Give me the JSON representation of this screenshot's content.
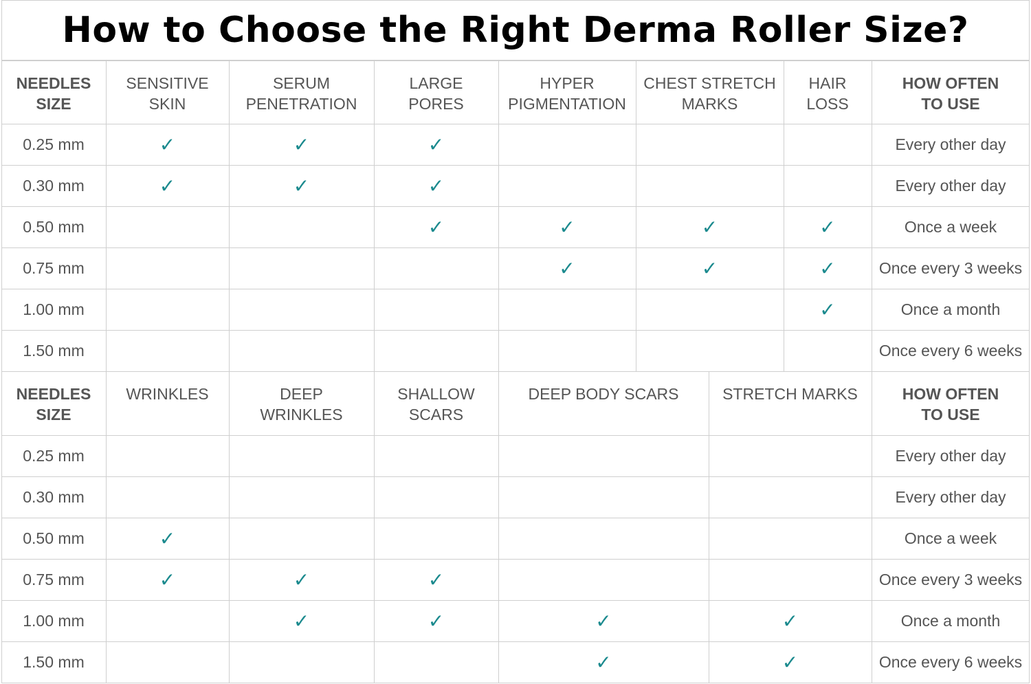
{
  "title": "How to Choose the Right Derma Roller Size?",
  "accent_color": "#1b8a8e",
  "check_glyph": "✓",
  "table1": {
    "headers": [
      {
        "text": "NEEDLES\nSIZE",
        "bold": true
      },
      {
        "text": "SENSITIVE\nSKIN",
        "bold": false
      },
      {
        "text": "SERUM\nPENETRATION",
        "bold": false
      },
      {
        "text": "LARGE\nPORES",
        "bold": false
      },
      {
        "text": "HYPER\nPIGMENTATION",
        "bold": false
      },
      {
        "text": "CHEST STRETCH\nMARKS",
        "bold": false
      },
      {
        "text": "HAIR\nLOSS",
        "bold": false
      },
      {
        "text": "HOW OFTEN\nTO USE",
        "bold": true
      }
    ],
    "rows": [
      {
        "size": "0.25 mm",
        "checks": [
          true,
          true,
          true,
          false,
          false,
          false
        ],
        "frequency": "Every other day"
      },
      {
        "size": "0.30 mm",
        "checks": [
          true,
          true,
          true,
          false,
          false,
          false
        ],
        "frequency": "Every other day"
      },
      {
        "size": "0.50 mm",
        "checks": [
          false,
          false,
          true,
          true,
          true,
          true
        ],
        "frequency": "Once a week"
      },
      {
        "size": "0.75 mm",
        "checks": [
          false,
          false,
          false,
          true,
          true,
          true
        ],
        "frequency": "Once every 3 weeks"
      },
      {
        "size": "1.00 mm",
        "checks": [
          false,
          false,
          false,
          false,
          false,
          true
        ],
        "frequency": "Once a month"
      },
      {
        "size": "1.50 mm",
        "checks": [
          false,
          false,
          false,
          false,
          false,
          false
        ],
        "frequency": "Once every 6 weeks"
      }
    ]
  },
  "table2": {
    "headers": [
      {
        "text": "NEEDLES\nSIZE",
        "bold": true
      },
      {
        "text": "WRINKLES",
        "bold": false
      },
      {
        "text": "DEEP\nWRINKLES",
        "bold": false
      },
      {
        "text": "SHALLOW\nSCARS",
        "bold": false
      },
      {
        "text": "DEEP BODY SCARS",
        "bold": false
      },
      {
        "text": "STRETCH MARKS",
        "bold": false
      },
      {
        "text": "HOW OFTEN\nTO USE",
        "bold": true
      }
    ],
    "rows": [
      {
        "size": "0.25 mm",
        "checks": [
          false,
          false,
          false,
          false,
          false
        ],
        "frequency": "Every other day"
      },
      {
        "size": "0.30 mm",
        "checks": [
          false,
          false,
          false,
          false,
          false
        ],
        "frequency": "Every other day"
      },
      {
        "size": "0.50 mm",
        "checks": [
          true,
          false,
          false,
          false,
          false
        ],
        "frequency": "Once a week"
      },
      {
        "size": "0.75 mm",
        "checks": [
          true,
          true,
          true,
          false,
          false
        ],
        "frequency": "Once every 3 weeks"
      },
      {
        "size": "1.00 mm",
        "checks": [
          false,
          true,
          true,
          true,
          true
        ],
        "frequency": "Once a month"
      },
      {
        "size": "1.50 mm",
        "checks": [
          false,
          false,
          false,
          true,
          true
        ],
        "frequency": "Once every 6 weeks"
      }
    ]
  }
}
